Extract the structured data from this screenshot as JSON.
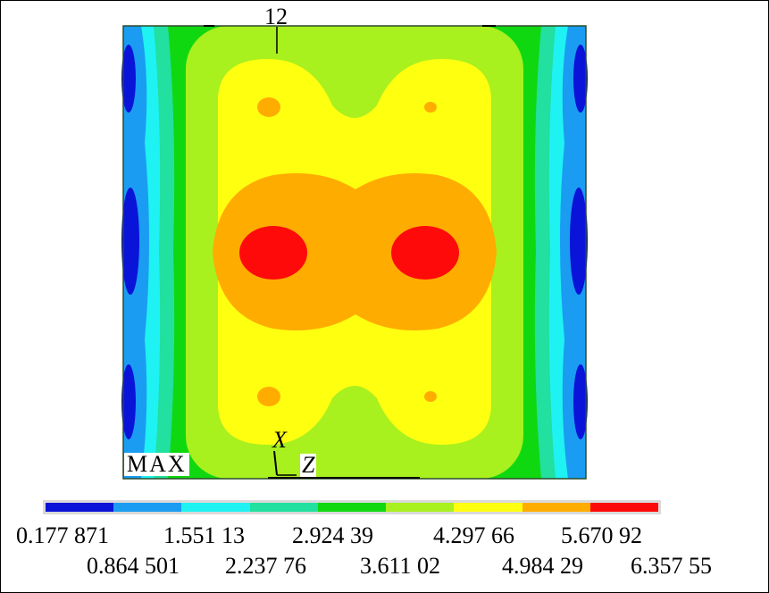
{
  "node_label": "12",
  "max_label": "MAX",
  "axes": {
    "x": "X",
    "z": "Z"
  },
  "legend": {
    "colors": [
      "#0a14d8",
      "#1a9cf2",
      "#1ff2f2",
      "#21e0a0",
      "#10d810",
      "#a8f01e",
      "#ffff10",
      "#ffac00",
      "#ff0a0a"
    ],
    "row1": [
      "0.177 871",
      "1.551 13",
      "2.924 39",
      "4.297 66",
      "5.670 92"
    ],
    "row2": [
      "0.864 501",
      "2.237 76",
      "3.611 02",
      "4.984 29",
      "6.357 55"
    ]
  }
}
